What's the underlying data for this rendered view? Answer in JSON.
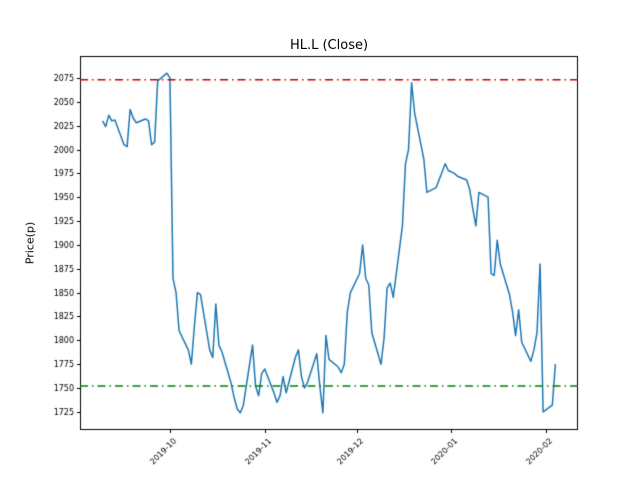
{
  "figure": {
    "background": "#ffffff"
  },
  "chart_data": {
    "type": "line",
    "title": "HL.L (Close)",
    "xlabel": "",
    "ylabel": "Price(p)",
    "grid": false,
    "legend": "none",
    "ylim": [
      1706,
      2098
    ],
    "yticks": [
      1725,
      1750,
      1775,
      1800,
      1825,
      1850,
      1875,
      1900,
      1925,
      1950,
      1975,
      2000,
      2025,
      2050,
      2075
    ],
    "xticks": [
      {
        "label": "2019-10",
        "date": "2019-10-01"
      },
      {
        "label": "2019-11",
        "date": "2019-11-01"
      },
      {
        "label": "2019-12",
        "date": "2019-12-01"
      },
      {
        "label": "2020-01",
        "date": "2020-01-01"
      },
      {
        "label": "2020-02",
        "date": "2020-02-01"
      }
    ],
    "xtick_rotation": 45,
    "hlines": [
      {
        "y": 2073,
        "color": "#cc0000",
        "style": "dashdot"
      },
      {
        "y": 1752,
        "color": "#007f00",
        "style": "dashdot"
      }
    ],
    "series": [
      {
        "name": "Close",
        "color": "#1f77b4",
        "x": [
          "2019-09-09",
          "2019-09-10",
          "2019-09-11",
          "2019-09-12",
          "2019-09-13",
          "2019-09-16",
          "2019-09-17",
          "2019-09-18",
          "2019-09-19",
          "2019-09-20",
          "2019-09-23",
          "2019-09-24",
          "2019-09-25",
          "2019-09-26",
          "2019-09-27",
          "2019-09-30",
          "2019-10-01",
          "2019-10-02",
          "2019-10-03",
          "2019-10-04",
          "2019-10-07",
          "2019-10-08",
          "2019-10-09",
          "2019-10-10",
          "2019-10-11",
          "2019-10-14",
          "2019-10-15",
          "2019-10-16",
          "2019-10-17",
          "2019-10-18",
          "2019-10-21",
          "2019-10-22",
          "2019-10-23",
          "2019-10-24",
          "2019-10-25",
          "2019-10-28",
          "2019-10-29",
          "2019-10-30",
          "2019-10-31",
          "2019-11-01",
          "2019-11-04",
          "2019-11-05",
          "2019-11-06",
          "2019-11-07",
          "2019-11-08",
          "2019-11-11",
          "2019-11-12",
          "2019-11-13",
          "2019-11-14",
          "2019-11-15",
          "2019-11-18",
          "2019-11-19",
          "2019-11-20",
          "2019-11-21",
          "2019-11-22",
          "2019-11-25",
          "2019-11-26",
          "2019-11-27",
          "2019-11-28",
          "2019-11-29",
          "2019-12-02",
          "2019-12-03",
          "2019-12-04",
          "2019-12-05",
          "2019-12-06",
          "2019-12-09",
          "2019-12-10",
          "2019-12-11",
          "2019-12-12",
          "2019-12-13",
          "2019-12-16",
          "2019-12-17",
          "2019-12-18",
          "2019-12-19",
          "2019-12-20",
          "2019-12-23",
          "2019-12-24",
          "2019-12-27",
          "2019-12-30",
          "2019-12-31",
          "2020-01-02",
          "2020-01-03",
          "2020-01-06",
          "2020-01-07",
          "2020-01-08",
          "2020-01-09",
          "2020-01-10",
          "2020-01-13",
          "2020-01-14",
          "2020-01-15",
          "2020-01-16",
          "2020-01-17",
          "2020-01-20",
          "2020-01-21",
          "2020-01-22",
          "2020-01-23",
          "2020-01-24",
          "2020-01-27",
          "2020-01-28",
          "2020-01-29",
          "2020-01-30",
          "2020-01-31",
          "2020-02-03",
          "2020-02-04"
        ],
        "y": [
          2030,
          2024,
          2036,
          2030,
          2031,
          2005,
          2003,
          2042,
          2033,
          2028,
          2032,
          2030,
          2005,
          2008,
          2072,
          2080,
          2075,
          1865,
          1850,
          1810,
          1790,
          1775,
          1815,
          1850,
          1848,
          1790,
          1782,
          1838,
          1795,
          1788,
          1755,
          1740,
          1728,
          1724,
          1732,
          1795,
          1752,
          1742,
          1765,
          1770,
          1745,
          1735,
          1742,
          1762,
          1745,
          1782,
          1790,
          1762,
          1750,
          1756,
          1786,
          1752,
          1724,
          1805,
          1780,
          1772,
          1766,
          1775,
          1830,
          1850,
          1870,
          1900,
          1865,
          1858,
          1808,
          1775,
          1802,
          1855,
          1860,
          1845,
          1920,
          1985,
          2000,
          2070,
          2038,
          1990,
          1955,
          1960,
          1985,
          1978,
          1975,
          1972,
          1968,
          1958,
          1938,
          1920,
          1955,
          1950,
          1870,
          1868,
          1905,
          1880,
          1848,
          1830,
          1805,
          1832,
          1798,
          1778,
          1790,
          1808,
          1880,
          1725,
          1732,
          1775
        ]
      }
    ]
  }
}
